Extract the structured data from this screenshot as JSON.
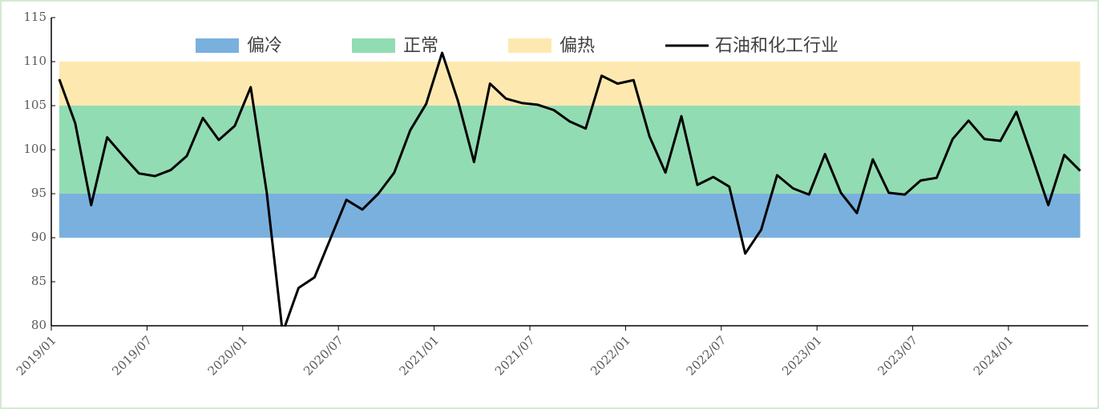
{
  "chart_data": {
    "type": "line",
    "categories": [
      "2019/01",
      null,
      null,
      null,
      null,
      null,
      "2019/07",
      null,
      null,
      null,
      null,
      null,
      "2020/01",
      null,
      null,
      null,
      null,
      null,
      "2020/07",
      null,
      null,
      null,
      null,
      null,
      "2021/01",
      null,
      null,
      null,
      null,
      null,
      "2021/07",
      null,
      null,
      null,
      null,
      null,
      "2022/01",
      null,
      null,
      null,
      null,
      null,
      "2022/07",
      null,
      null,
      null,
      null,
      null,
      "2023/01",
      null,
      null,
      null,
      null,
      null,
      "2023/07",
      null,
      null,
      null,
      null,
      null,
      "2024/01",
      null,
      null,
      null,
      null
    ],
    "series": [
      {
        "name": "石油和化工行业",
        "color": "#000000",
        "values": [
          108.0,
          103.0,
          93.7,
          101.4,
          99.3,
          97.3,
          97.0,
          97.7,
          99.3,
          103.6,
          101.1,
          102.7,
          107.1,
          95.2,
          79.2,
          84.3,
          85.5,
          89.9,
          94.3,
          93.2,
          95.0,
          97.4,
          102.2,
          105.2,
          111.0,
          105.5,
          98.6,
          107.5,
          105.8,
          105.3,
          105.1,
          104.5,
          103.2,
          102.4,
          108.4,
          107.5,
          107.9,
          101.5,
          97.4,
          103.8,
          96.0,
          96.9,
          95.8,
          88.2,
          90.9,
          97.1,
          95.6,
          94.9,
          99.5,
          95.1,
          92.8,
          98.9,
          95.1,
          94.9,
          96.5,
          96.8,
          101.2,
          103.3,
          101.2,
          101.0,
          104.3,
          99.1,
          93.7,
          99.4,
          97.6
        ]
      }
    ],
    "bands": [
      {
        "name": "偏冷",
        "color": "#7ab0de",
        "range": [
          90,
          95
        ]
      },
      {
        "name": "正常",
        "color": "#92dcb3",
        "range": [
          95,
          105
        ]
      },
      {
        "name": "偏热",
        "color": "#fde9b0",
        "range": [
          105,
          110
        ]
      }
    ],
    "ylim": [
      80,
      115
    ],
    "yticks": [
      80,
      85,
      90,
      95,
      100,
      105,
      110,
      115
    ]
  }
}
